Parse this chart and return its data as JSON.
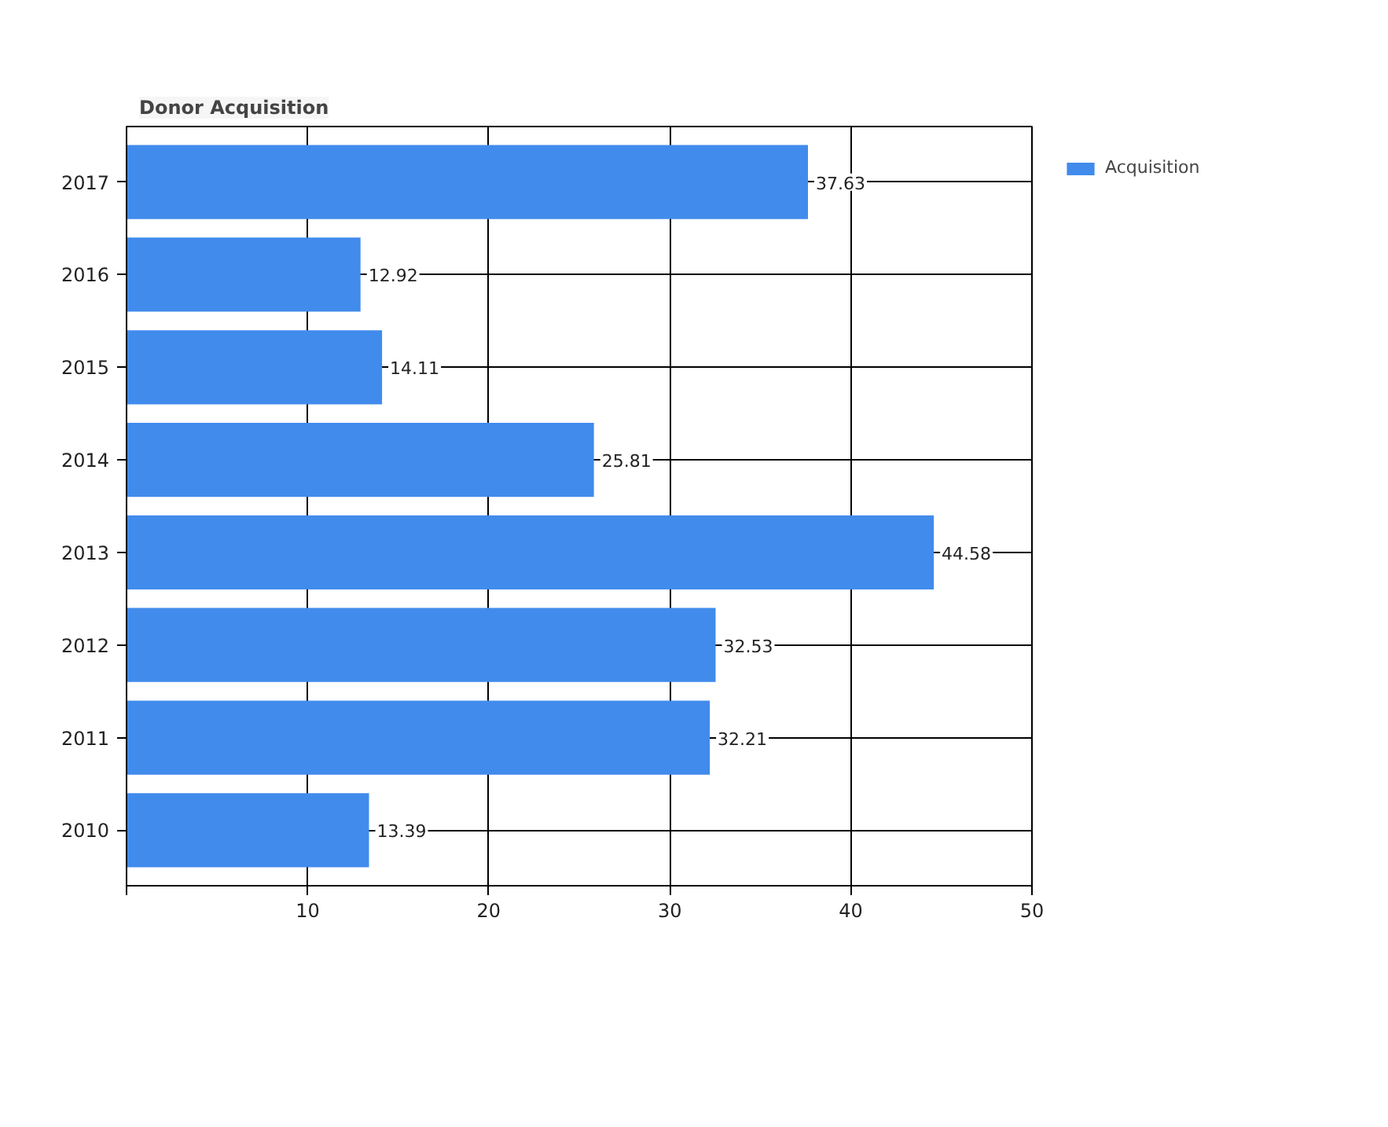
{
  "chart_data": {
    "type": "bar",
    "title": "Donor Acquisition",
    "orientation": "horizontal",
    "categories": [
      "2017",
      "2016",
      "2015",
      "2014",
      "2013",
      "2012",
      "2011",
      "2010"
    ],
    "series": [
      {
        "name": "Acquisition",
        "color": "#418bec",
        "values": [
          37.63,
          12.92,
          14.11,
          25.81,
          44.58,
          32.53,
          32.21,
          13.39
        ]
      }
    ],
    "xlim": [
      0,
      50
    ],
    "xticks": [
      {
        "value": 0,
        "label": null
      },
      10,
      20,
      30,
      40,
      50
    ],
    "grid": true,
    "legend": "top right",
    "data_labels": true
  }
}
